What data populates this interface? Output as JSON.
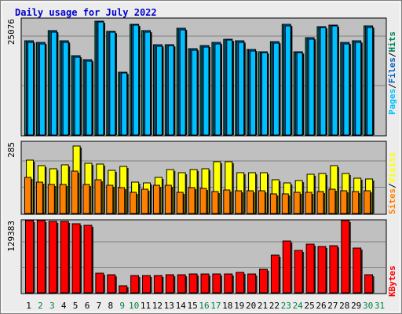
{
  "chart_data": {
    "type": "bar",
    "title": "Daily usage for July 2022",
    "categories": [
      "1",
      "2",
      "3",
      "4",
      "5",
      "6",
      "7",
      "8",
      "9",
      "10",
      "11",
      "12",
      "13",
      "14",
      "15",
      "16",
      "17",
      "18",
      "19",
      "20",
      "21",
      "22",
      "23",
      "24",
      "25",
      "26",
      "27",
      "28",
      "29",
      "30",
      "31"
    ],
    "weekend_days": [
      "2",
      "3",
      "9",
      "10",
      "16",
      "17",
      "23",
      "24",
      "30",
      "31"
    ],
    "colors": {
      "background": "#c0c0c0",
      "frame": "#ececec",
      "title": "#0000cc",
      "weekday_label": "#000000",
      "weekend_label": "#007f3f",
      "hits": "#00805c",
      "files": "#0060c0",
      "pages": "#00c0ff",
      "visits": "#ffff00",
      "sites": "#ff8000",
      "kbytes": "#ff0000"
    },
    "panels": [
      {
        "scale_max_label": "25076",
        "ylim": [
          0,
          25076
        ],
        "legend": [
          "Pages",
          "/",
          "Files",
          "/",
          "Hits"
        ],
        "series": [
          {
            "name": "Hits",
            "values": [
              20320,
              20030,
              22470,
              20300,
              17050,
              16290,
              24640,
              22440,
              13630,
              23950,
              22580,
              19500,
              19540,
              22990,
              18660,
              19260,
              19920,
              20730,
              20330,
              18420,
              18020,
              20140,
              23850,
              18020,
              20990,
              23450,
              23800,
              20030,
              20300,
              23550,
              0
            ]
          },
          {
            "name": "Files",
            "values": [
              20320,
              20030,
              22470,
              20300,
              17050,
              16290,
              24640,
              22440,
              13630,
              23950,
              22580,
              19500,
              19540,
              22990,
              18660,
              19260,
              19920,
              20730,
              20330,
              18420,
              18020,
              20140,
              23850,
              18020,
              20990,
              23450,
              23800,
              20030,
              20300,
              23550,
              0
            ]
          },
          {
            "name": "Pages",
            "values": [
              20020,
              19720,
              22170,
              20000,
              16760,
              16000,
              24340,
              22140,
              13340,
              23650,
              22280,
              19200,
              19240,
              22690,
              18360,
              18960,
              19620,
              20430,
              20030,
              18120,
              17720,
              19840,
              23550,
              17720,
              20690,
              23150,
              23500,
              19730,
              20000,
              23250,
              0
            ]
          }
        ]
      },
      {
        "scale_max_label": "285",
        "ylim": [
          0,
          285
        ],
        "legend": [
          "Sites",
          "/",
          "Visits"
        ],
        "series": [
          {
            "name": "Visits",
            "values": [
              212,
              192,
              179,
              194,
              268,
              199,
              198,
              173,
              188,
              124,
              123,
              143,
              175,
              162,
              175,
              177,
              206,
              206,
              162,
              163,
              163,
              136,
              123,
              130,
              158,
              161,
              191,
              159,
              140,
              137,
              0
            ]
          },
          {
            "name": "Sites",
            "values": [
              145,
              125,
              116,
              116,
              168,
              115,
              134,
              112,
              103,
              86,
              98,
              114,
              114,
              84,
              103,
              100,
              87,
              93,
              90,
              90,
              91,
              77,
              77,
              84,
              86,
              87,
              97,
              91,
              88,
              92,
              0
            ]
          }
        ]
      },
      {
        "scale_max_label": "129383",
        "ylim": [
          0,
          129383
        ],
        "legend": [
          "KBytes"
        ],
        "series": [
          {
            "name": "KBytes",
            "values": [
              129383,
              129383,
              127555,
              127555,
              124356,
              121600,
              35330,
              32120,
              13330,
              31180,
              31180,
              31180,
              32580,
              32120,
              33060,
              33060,
              33060,
              33060,
              37020,
              33940,
              41990,
              67330,
              93070,
              76020,
              87830,
              83270,
              84800,
              129383,
              80770,
              32000,
              0
            ]
          }
        ]
      }
    ]
  }
}
